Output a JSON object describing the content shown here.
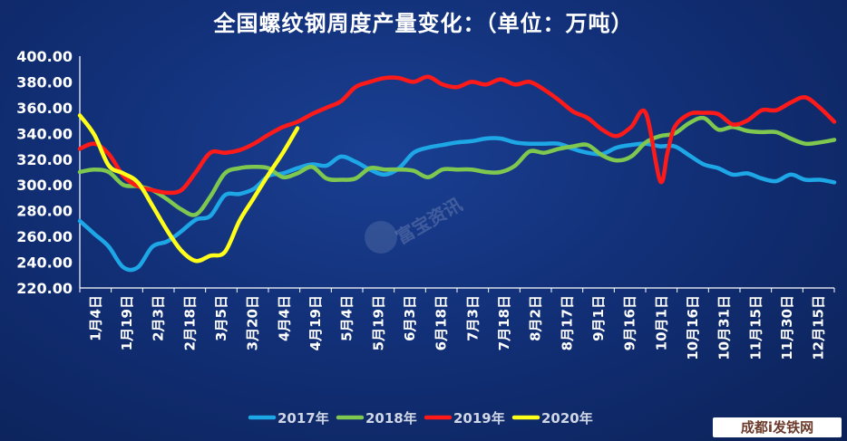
{
  "chart_data": {
    "type": "line",
    "title": "全国螺纹钢周度产量变化：（单位：万吨）",
    "ylim": [
      220,
      400
    ],
    "yticks": [
      "220.00",
      "240.00",
      "260.00",
      "280.00",
      "300.00",
      "320.00",
      "340.00",
      "360.00",
      "380.00",
      "400.00"
    ],
    "xtick_labels": [
      "1月4日",
      "1月19日",
      "2月3日",
      "2月18日",
      "3月5日",
      "3月20日",
      "4月4日",
      "4月19日",
      "5月4日",
      "5月19日",
      "6月3日",
      "6月18日",
      "7月3日",
      "7月18日",
      "8月2日",
      "8月17日",
      "9月1日",
      "9月16日",
      "10月1日",
      "10月16日",
      "10月31日",
      "11月15日",
      "11月30日",
      "12月15日"
    ],
    "x_domain": [
      0,
      52
    ],
    "legend_position": "bottom",
    "series": [
      {
        "name": "2017年",
        "color": "#1ea7e6",
        "x": [
          0,
          1,
          2,
          3,
          4,
          5,
          6,
          7,
          8,
          9,
          10,
          11,
          12,
          13,
          14,
          15,
          16,
          17,
          18,
          19,
          20,
          21,
          22,
          23,
          24,
          25,
          26,
          27,
          28,
          29,
          30,
          31,
          32,
          33,
          34,
          35,
          36,
          37,
          38,
          39,
          40,
          41,
          42,
          43,
          44,
          45,
          46,
          47,
          48,
          49,
          50,
          51,
          52
        ],
        "values": [
          272,
          262,
          252,
          236,
          236,
          252,
          256,
          264,
          273,
          276,
          292,
          293,
          297,
          307,
          309,
          313,
          316,
          315,
          322,
          318,
          312,
          308,
          313,
          325,
          329,
          331,
          333,
          334,
          336,
          336,
          333,
          332,
          332,
          332,
          328,
          325,
          324,
          329,
          331,
          332,
          330,
          330,
          323,
          316,
          313,
          308,
          309,
          305,
          303,
          308,
          304,
          304,
          302
        ]
      },
      {
        "name": "2018年",
        "color": "#7ec850",
        "x": [
          0,
          1,
          2,
          3,
          4,
          5,
          6,
          7,
          8,
          9,
          10,
          11,
          12,
          13,
          14,
          15,
          16,
          17,
          18,
          19,
          20,
          21,
          22,
          23,
          24,
          25,
          26,
          27,
          28,
          29,
          30,
          31,
          32,
          33,
          34,
          35,
          36,
          37,
          38,
          39,
          40,
          41,
          42,
          43,
          44,
          45,
          46,
          47,
          48,
          49,
          50,
          51,
          52
        ],
        "values": [
          310,
          312,
          310,
          300,
          299,
          296,
          289,
          281,
          277,
          291,
          309,
          313,
          314,
          313,
          306,
          309,
          314,
          305,
          304,
          305,
          313,
          312,
          312,
          311,
          306,
          312,
          312,
          312,
          310,
          310,
          315,
          326,
          325,
          328,
          330,
          331,
          323,
          319,
          322,
          333,
          338,
          340,
          348,
          352,
          343,
          345,
          342,
          341,
          341,
          336,
          332,
          333,
          335
        ]
      },
      {
        "name": "2019年",
        "color": "#ff1a1a",
        "x": [
          0,
          1,
          2,
          3,
          4,
          5,
          6,
          7,
          8,
          9,
          10,
          11,
          12,
          13,
          14,
          15,
          16,
          17,
          18,
          19,
          20,
          21,
          22,
          23,
          24,
          25,
          26,
          27,
          28,
          29,
          30,
          31,
          32,
          33,
          34,
          35,
          36,
          37,
          38,
          39,
          40,
          40.5,
          41,
          42,
          43,
          44,
          45,
          46,
          47,
          48,
          49,
          50,
          51,
          52
        ],
        "values": [
          328,
          332,
          324,
          307,
          299,
          296,
          294,
          296,
          310,
          325,
          325,
          327,
          332,
          339,
          345,
          349,
          355,
          360,
          365,
          376,
          380,
          383,
          383,
          380,
          384,
          378,
          376,
          380,
          378,
          382,
          378,
          380,
          374,
          366,
          357,
          352,
          343,
          338,
          345,
          356,
          303,
          325,
          345,
          355,
          356,
          355,
          347,
          350,
          358,
          358,
          364,
          368,
          360,
          349
        ]
      },
      {
        "name": "2020年",
        "color": "#ffff1a",
        "x": [
          0,
          1,
          2,
          3,
          4,
          5,
          6,
          7,
          8,
          9,
          10,
          11,
          12,
          13,
          14,
          15
        ],
        "values": [
          354,
          339,
          315,
          309,
          302,
          284,
          265,
          249,
          241,
          245,
          248,
          272,
          290,
          308,
          325,
          344
        ]
      }
    ]
  },
  "watermark": "富宝资讯",
  "corner_logo": "成都i发铁网"
}
